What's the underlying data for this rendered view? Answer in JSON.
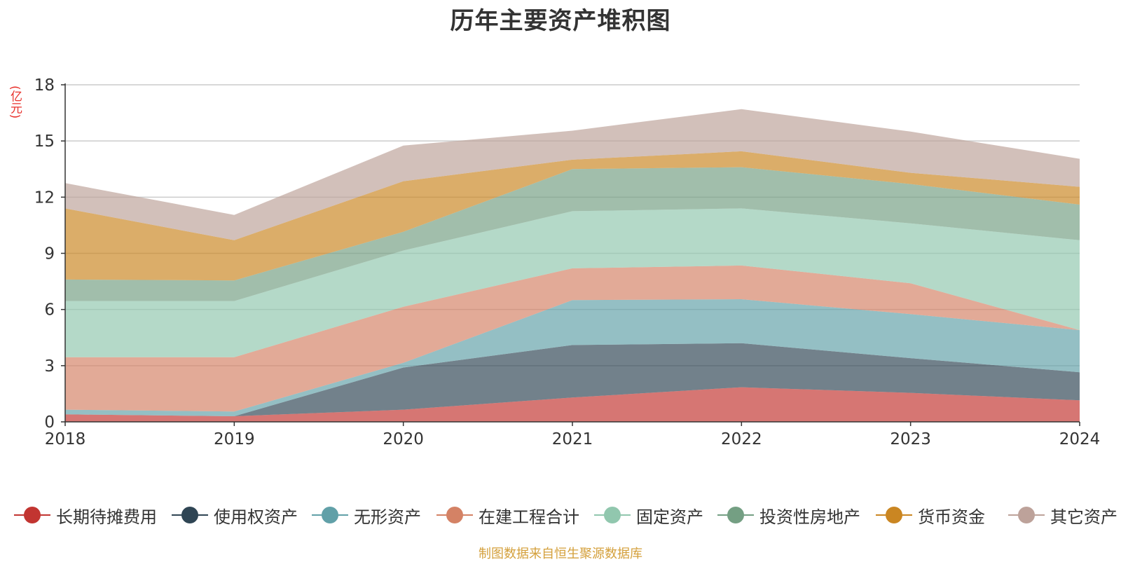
{
  "title": "历年主要资产堆积图",
  "y_unit": "(亿元)",
  "source_note": "制图数据来自恒生聚源数据库",
  "chart_data": {
    "type": "area",
    "stacked": true,
    "title": "历年主要资产堆积图",
    "ylabel": "(亿元)",
    "x": [
      "2018",
      "2019",
      "2020",
      "2021",
      "2022",
      "2023",
      "2024"
    ],
    "ylim": [
      0,
      18
    ],
    "yticks": [
      "0",
      "3",
      "6",
      "9",
      "12",
      "15",
      "18"
    ],
    "grid": true,
    "legend_position": "bottom",
    "series": [
      {
        "name": "长期待摊费用",
        "color": "#c23531",
        "values": [
          0.4,
          0.3,
          0.65,
          1.3,
          1.85,
          1.55,
          1.15
        ]
      },
      {
        "name": "使用权资产",
        "color": "#2f4554",
        "values": [
          0.0,
          0.0,
          2.25,
          2.8,
          2.35,
          1.85,
          1.5
        ]
      },
      {
        "name": "无形资产",
        "color": "#61a0a8",
        "values": [
          0.25,
          0.25,
          0.25,
          2.4,
          2.35,
          2.35,
          2.25
        ]
      },
      {
        "name": "在建工程合计",
        "color": "#d48265",
        "values": [
          2.8,
          2.9,
          3.0,
          1.7,
          1.8,
          1.65,
          0.0
        ]
      },
      {
        "name": "固定资产",
        "color": "#91c7ae",
        "values": [
          3.0,
          3.0,
          3.0,
          3.05,
          3.05,
          3.2,
          4.8
        ]
      },
      {
        "name": "投资性房地产",
        "color": "#749f83",
        "values": [
          1.15,
          1.1,
          1.0,
          2.25,
          2.2,
          2.1,
          1.9
        ]
      },
      {
        "name": "货币资金",
        "color": "#ca8622",
        "values": [
          3.8,
          2.15,
          2.7,
          0.5,
          0.85,
          0.6,
          0.95
        ]
      },
      {
        "name": "其它资产",
        "color": "#bda29a",
        "values": [
          1.35,
          1.35,
          1.9,
          1.55,
          2.25,
          2.2,
          1.5
        ]
      }
    ]
  }
}
